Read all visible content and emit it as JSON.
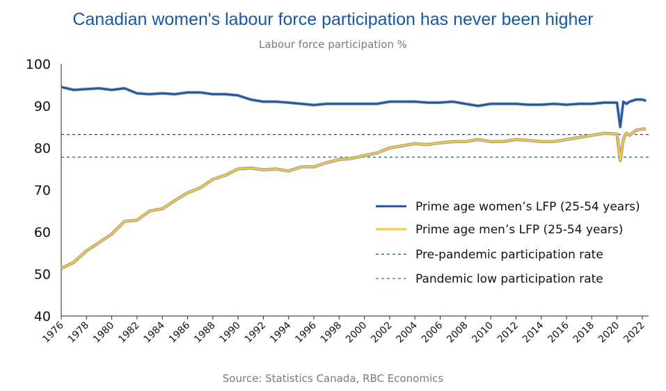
{
  "title": "Canadian women's labour force participation has never been higher",
  "subtitle": "Labour force participation %",
  "source": "Source: Statistics Canada, RBC Economics",
  "colors": {
    "women": "#1d5499",
    "men": "#f2c744",
    "prepandemic": "#1d4e7a",
    "pandemiclow": "#3f6f6a"
  },
  "chart_data": {
    "type": "line",
    "title": "Canadian women's labour force participation has never been higher",
    "subtitle": "Labour force participation %",
    "xlabel": "",
    "ylabel": "",
    "xlim": [
      1976,
      2022.5
    ],
    "ylim": [
      40,
      100
    ],
    "yticks": [
      "100",
      "90",
      "80",
      "70",
      "60",
      "50",
      "40"
    ],
    "xticks": [
      "1976",
      "1978",
      "1980",
      "1982",
      "1984",
      "1986",
      "1988",
      "1990",
      "1992",
      "1994",
      "1996",
      "1998",
      "2000",
      "2002",
      "2004",
      "2006",
      "2008",
      "2010",
      "2012",
      "2014",
      "2016",
      "2018",
      "2020",
      "2022"
    ],
    "legend_position": "right",
    "series": [
      {
        "name": "Prime age women’s LFP (25-54 years)",
        "x": [
          1976,
          1977,
          1978,
          1979,
          1980,
          1981,
          1982,
          1983,
          1984,
          1985,
          1986,
          1987,
          1988,
          1989,
          1990,
          1991,
          1992,
          1993,
          1994,
          1995,
          1996,
          1997,
          1998,
          1999,
          2000,
          2001,
          2002,
          2003,
          2004,
          2005,
          2006,
          2007,
          2008,
          2009,
          2010,
          2011,
          2012,
          2013,
          2014,
          2015,
          2016,
          2017,
          2018,
          2019,
          2020.0,
          2020.25,
          2020.5,
          2020.75,
          2021,
          2021.5,
          2022,
          2022.3
        ],
        "y": [
          51.3,
          52.8,
          55.5,
          57.5,
          59.5,
          62.5,
          62.8,
          65.0,
          65.5,
          67.5,
          69.3,
          70.5,
          72.5,
          73.5,
          75.0,
          75.2,
          74.8,
          75.0,
          74.5,
          75.5,
          75.5,
          76.5,
          77.2,
          77.5,
          78.2,
          78.8,
          80.0,
          80.5,
          81.0,
          80.8,
          81.2,
          81.5,
          81.5,
          82.0,
          81.5,
          81.5,
          82.0,
          81.8,
          81.5,
          81.5,
          82.0,
          82.5,
          83.0,
          83.5,
          83.3,
          77.0,
          82.0,
          83.5,
          83.0,
          84.2,
          84.5,
          84.5
        ]
      },
      {
        "name": "Prime age men’s LFP (25-54 years)",
        "x": [
          1976,
          1977,
          1978,
          1979,
          1980,
          1981,
          1982,
          1983,
          1984,
          1985,
          1986,
          1987,
          1988,
          1989,
          1990,
          1991,
          1992,
          1993,
          1994,
          1995,
          1996,
          1997,
          1998,
          1999,
          2000,
          2001,
          2002,
          2003,
          2004,
          2005,
          2006,
          2007,
          2008,
          2009,
          2010,
          2011,
          2012,
          2013,
          2014,
          2015,
          2016,
          2017,
          2018,
          2019,
          2020.0,
          2020.25,
          2020.5,
          2020.75,
          2021,
          2021.5,
          2022,
          2022.3
        ],
        "y": [
          94.5,
          93.8,
          94.0,
          94.2,
          93.8,
          94.2,
          93.0,
          92.8,
          93.0,
          92.8,
          93.2,
          93.2,
          92.8,
          92.8,
          92.5,
          91.5,
          91.0,
          91.0,
          90.8,
          90.5,
          90.2,
          90.5,
          90.5,
          90.5,
          90.5,
          90.5,
          91.0,
          91.0,
          91.0,
          90.8,
          90.8,
          91.0,
          90.5,
          90.0,
          90.5,
          90.5,
          90.5,
          90.3,
          90.3,
          90.5,
          90.3,
          90.5,
          90.5,
          90.8,
          90.8,
          85.0,
          91.0,
          90.5,
          91.0,
          91.5,
          91.5,
          91.2
        ]
      },
      {
        "name": "Pre-pandemic participation rate",
        "y": 83.2
      },
      {
        "name": "Pandemic low participation rate",
        "y": 77.8
      }
    ]
  }
}
